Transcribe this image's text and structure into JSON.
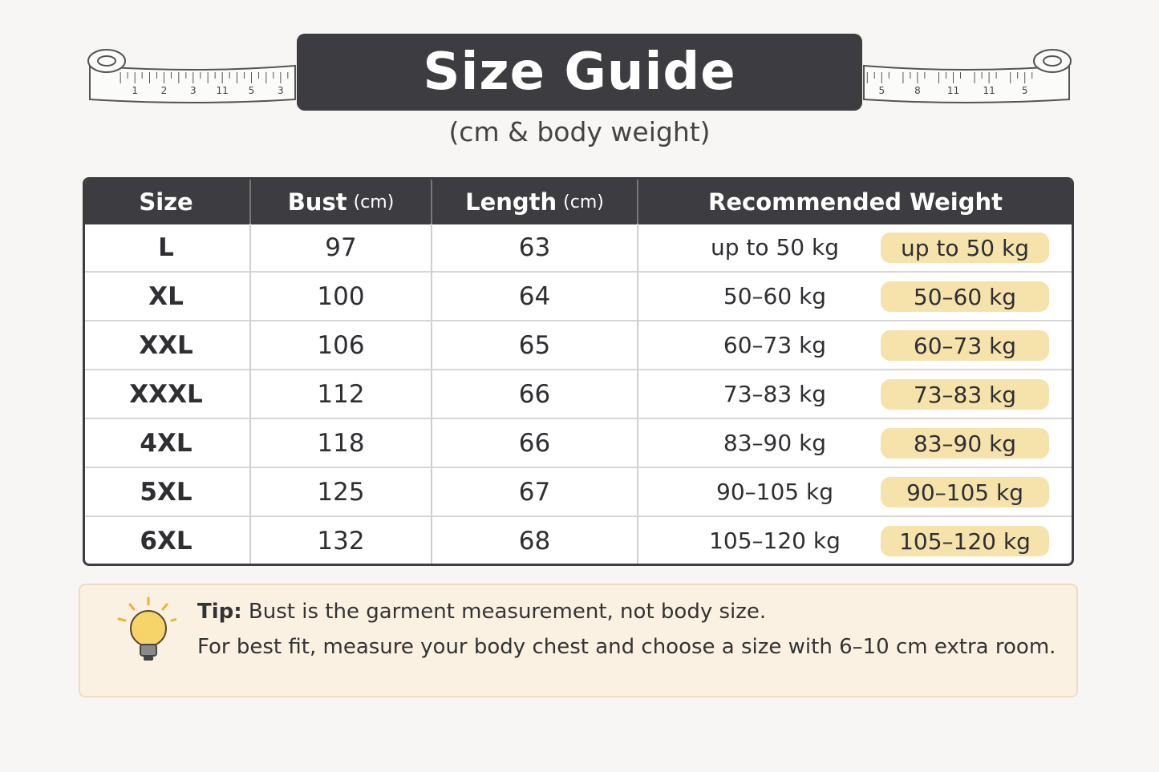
{
  "header": {
    "title": "Size Guide",
    "subtitle": "(cm & body weight)",
    "tape_left": [
      "1",
      "2",
      "3",
      "11",
      "5",
      "3"
    ],
    "tape_right": [
      "5",
      "8",
      "11",
      "11",
      "5"
    ]
  },
  "table": {
    "columns": [
      {
        "label": "Size"
      },
      {
        "label": "Bust",
        "unit": "(cm)"
      },
      {
        "label": "Length",
        "unit": "(cm)"
      },
      {
        "label": "Recommended Weight"
      }
    ],
    "rows": [
      {
        "size": "L",
        "bust": 97,
        "length": 63,
        "weight": "up to 50 kg",
        "badge": "up to 50 kg"
      },
      {
        "size": "XL",
        "bust": 100,
        "length": 64,
        "weight": "50–60 kg",
        "badge": "50–60 kg"
      },
      {
        "size": "XXL",
        "bust": 106,
        "length": 65,
        "weight": "60–73 kg",
        "badge": "60–73 kg"
      },
      {
        "size": "XXXL",
        "bust": 112,
        "length": 66,
        "weight": "73–83 kg",
        "badge": "73–83 kg"
      },
      {
        "size": "4XL",
        "bust": 118,
        "length": 66,
        "weight": "83–90 kg",
        "badge": "83–90 kg"
      },
      {
        "size": "5XL",
        "bust": 125,
        "length": 67,
        "weight": "90–105 kg",
        "badge": "90–105 kg"
      },
      {
        "size": "6XL",
        "bust": 132,
        "length": 68,
        "weight": "105–120 kg",
        "badge": "105–120 kg"
      }
    ]
  },
  "tip": {
    "label": "Tip:",
    "line1": "Bust is the garment measurement, not body size.",
    "line2": "For best fit, measure your body chest and choose a size with 6–10 cm extra room."
  }
}
